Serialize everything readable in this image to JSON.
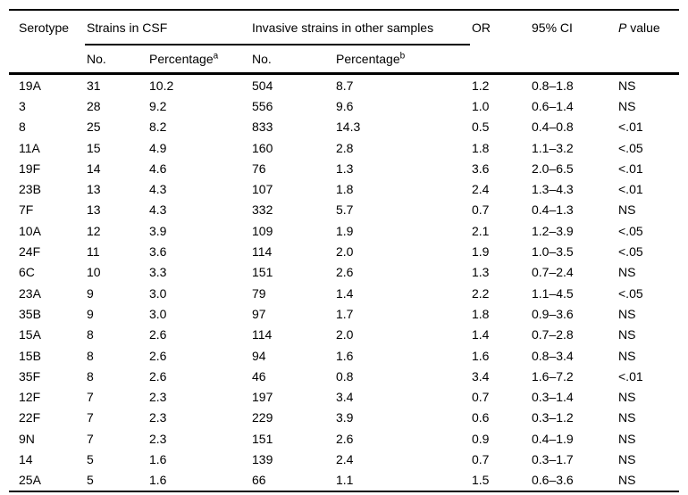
{
  "table": {
    "headers": {
      "serotype": "Serotype",
      "group_csf": "Strains in CSF",
      "group_other": "Invasive strains in other samples",
      "or": "OR",
      "ci": "95% CI",
      "p_italic": "P",
      "p_rest": " value",
      "csf_no": "No.",
      "csf_pct": "Percentage",
      "csf_pct_sup": "a",
      "other_no": "No.",
      "other_pct": "Percentage",
      "other_pct_sup": "b"
    },
    "rows": [
      {
        "serotype": "19A",
        "csf_no": "31",
        "csf_pct": "10.2",
        "other_no": "504",
        "other_pct": "8.7",
        "or": "1.2",
        "ci": "0.8–1.8",
        "p": "NS"
      },
      {
        "serotype": "3",
        "csf_no": "28",
        "csf_pct": "9.2",
        "other_no": "556",
        "other_pct": "9.6",
        "or": "1.0",
        "ci": "0.6–1.4",
        "p": "NS"
      },
      {
        "serotype": "8",
        "csf_no": "25",
        "csf_pct": "8.2",
        "other_no": "833",
        "other_pct": "14.3",
        "or": "0.5",
        "ci": "0.4–0.8",
        "p": "<.01"
      },
      {
        "serotype": "11A",
        "csf_no": "15",
        "csf_pct": "4.9",
        "other_no": "160",
        "other_pct": "2.8",
        "or": "1.8",
        "ci": "1.1–3.2",
        "p": "<.05"
      },
      {
        "serotype": "19F",
        "csf_no": "14",
        "csf_pct": "4.6",
        "other_no": "76",
        "other_pct": "1.3",
        "or": "3.6",
        "ci": "2.0–6.5",
        "p": "<.01"
      },
      {
        "serotype": "23B",
        "csf_no": "13",
        "csf_pct": "4.3",
        "other_no": "107",
        "other_pct": "1.8",
        "or": "2.4",
        "ci": "1.3–4.3",
        "p": "<.01"
      },
      {
        "serotype": "7F",
        "csf_no": "13",
        "csf_pct": "4.3",
        "other_no": "332",
        "other_pct": "5.7",
        "or": "0.7",
        "ci": "0.4–1.3",
        "p": "NS"
      },
      {
        "serotype": "10A",
        "csf_no": "12",
        "csf_pct": "3.9",
        "other_no": "109",
        "other_pct": "1.9",
        "or": "2.1",
        "ci": "1.2–3.9",
        "p": "<.05"
      },
      {
        "serotype": "24F",
        "csf_no": "11",
        "csf_pct": "3.6",
        "other_no": "114",
        "other_pct": "2.0",
        "or": "1.9",
        "ci": "1.0–3.5",
        "p": "<.05"
      },
      {
        "serotype": "6C",
        "csf_no": "10",
        "csf_pct": "3.3",
        "other_no": "151",
        "other_pct": "2.6",
        "or": "1.3",
        "ci": "0.7–2.4",
        "p": "NS"
      },
      {
        "serotype": "23A",
        "csf_no": "9",
        "csf_pct": "3.0",
        "other_no": "79",
        "other_pct": "1.4",
        "or": "2.2",
        "ci": "1.1–4.5",
        "p": "<.05"
      },
      {
        "serotype": "35B",
        "csf_no": "9",
        "csf_pct": "3.0",
        "other_no": "97",
        "other_pct": "1.7",
        "or": "1.8",
        "ci": "0.9–3.6",
        "p": "NS"
      },
      {
        "serotype": "15A",
        "csf_no": "8",
        "csf_pct": "2.6",
        "other_no": "114",
        "other_pct": "2.0",
        "or": "1.4",
        "ci": "0.7–2.8",
        "p": "NS"
      },
      {
        "serotype": "15B",
        "csf_no": "8",
        "csf_pct": "2.6",
        "other_no": "94",
        "other_pct": "1.6",
        "or": "1.6",
        "ci": "0.8–3.4",
        "p": "NS"
      },
      {
        "serotype": "35F",
        "csf_no": "8",
        "csf_pct": "2.6",
        "other_no": "46",
        "other_pct": "0.8",
        "or": "3.4",
        "ci": "1.6–7.2",
        "p": "<.01"
      },
      {
        "serotype": "12F",
        "csf_no": "7",
        "csf_pct": "2.3",
        "other_no": "197",
        "other_pct": "3.4",
        "or": "0.7",
        "ci": "0.3–1.4",
        "p": "NS"
      },
      {
        "serotype": "22F",
        "csf_no": "7",
        "csf_pct": "2.3",
        "other_no": "229",
        "other_pct": "3.9",
        "or": "0.6",
        "ci": "0.3–1.2",
        "p": "NS"
      },
      {
        "serotype": "9N",
        "csf_no": "7",
        "csf_pct": "2.3",
        "other_no": "151",
        "other_pct": "2.6",
        "or": "0.9",
        "ci": "0.4–1.9",
        "p": "NS"
      },
      {
        "serotype": "14",
        "csf_no": "5",
        "csf_pct": "1.6",
        "other_no": "139",
        "other_pct": "2.4",
        "or": "0.7",
        "ci": "0.3–1.7",
        "p": "NS"
      },
      {
        "serotype": "25A",
        "csf_no": "5",
        "csf_pct": "1.6",
        "other_no": "66",
        "other_pct": "1.1",
        "or": "1.5",
        "ci": "0.6–3.6",
        "p": "NS"
      }
    ]
  },
  "colors": {
    "text": "#000000",
    "rule": "#000000",
    "background": "#ffffff"
  }
}
